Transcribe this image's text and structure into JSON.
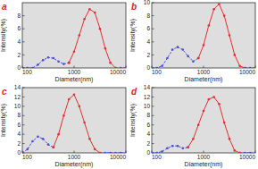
{
  "chart_data": [
    {
      "type": "line",
      "title": "a",
      "x_label": "Diameter(nm)",
      "y_label": "Intensity(%)",
      "log": "x",
      "x": [
        100,
        126,
        158,
        200,
        251,
        316,
        398,
        501,
        631,
        794,
        1000,
        1259,
        1585,
        1995,
        2512,
        3162,
        3981,
        5012,
        6310,
        7943,
        10000
      ],
      "xlim": [
        100,
        10000
      ],
      "xticks": [
        100,
        1000,
        10000
      ],
      "ylim": [
        0,
        10
      ],
      "yticks": [
        0,
        2,
        4,
        6,
        8
      ],
      "series": [
        {
          "color": "#4a4ad8",
          "line_style": "dashed",
          "marker": "circle",
          "values": [
            0,
            0,
            0,
            0.5,
            1.2,
            1.6,
            1.5,
            1.0,
            0.6,
            0.8,
            null,
            null,
            null,
            null,
            null,
            null,
            null,
            null,
            0,
            0,
            0
          ]
        },
        {
          "color": "#e03030",
          "line_style": "solid",
          "marker": "circle",
          "values": [
            null,
            null,
            null,
            null,
            null,
            null,
            null,
            null,
            null,
            0.8,
            2.5,
            5,
            7.5,
            9,
            8.5,
            6,
            3,
            0.8,
            0,
            null,
            null
          ]
        }
      ]
    },
    {
      "type": "line",
      "title": "b",
      "x_label": "Diameter(nm)",
      "y_label": "Intensity(%)",
      "log": "x",
      "x": [
        100,
        126,
        158,
        200,
        251,
        316,
        398,
        501,
        631,
        794,
        1000,
        1259,
        1585,
        1995,
        2512,
        3162,
        3981,
        5012,
        6310,
        7943,
        10000
      ],
      "xlim": [
        100,
        10000
      ],
      "xticks": [
        100,
        1000,
        10000
      ],
      "ylim": [
        0,
        10
      ],
      "yticks": [
        0,
        2,
        4,
        6,
        8,
        10
      ],
      "series": [
        {
          "color": "#4a4ad8",
          "line_style": "dashed",
          "marker": "circle",
          "values": [
            0,
            0,
            0.3,
            1.5,
            2.8,
            3.2,
            2.8,
            1.8,
            1.0,
            1.5,
            null,
            null,
            null,
            null,
            null,
            null,
            null,
            null,
            0,
            0,
            0
          ]
        },
        {
          "color": "#e03030",
          "line_style": "solid",
          "marker": "circle",
          "values": [
            null,
            null,
            null,
            null,
            null,
            null,
            null,
            null,
            null,
            1.5,
            3.5,
            6.5,
            9,
            9.8,
            8,
            5,
            2,
            0.3,
            0,
            null,
            null
          ]
        }
      ]
    },
    {
      "type": "line",
      "title": "c",
      "x_label": "Diameter(nm)",
      "y_label": "Intensity(%)",
      "log": "x",
      "x": [
        100,
        126,
        158,
        200,
        251,
        316,
        398,
        501,
        631,
        794,
        1000,
        1259,
        1585,
        1995,
        2512,
        3162,
        3981,
        5012,
        6310,
        7943,
        10000
      ],
      "xlim": [
        100,
        10000
      ],
      "xticks": [
        100,
        1000,
        10000
      ],
      "ylim": [
        0,
        14
      ],
      "yticks": [
        0,
        2,
        4,
        6,
        8,
        10,
        12,
        14
      ],
      "series": [
        {
          "color": "#4a4ad8",
          "line_style": "dashed",
          "marker": "circle",
          "values": [
            0,
            0.8,
            2.5,
            3.5,
            3,
            1.8,
            1.2,
            null,
            null,
            null,
            null,
            null,
            null,
            null,
            null,
            0,
            0,
            0,
            0,
            0,
            0
          ]
        },
        {
          "color": "#e03030",
          "line_style": "solid",
          "marker": "circle",
          "values": [
            null,
            null,
            null,
            null,
            null,
            null,
            1.2,
            4,
            8,
            11.5,
            12.5,
            10,
            6.5,
            3,
            0.8,
            0,
            null,
            null,
            null,
            null,
            null
          ]
        }
      ]
    },
    {
      "type": "line",
      "title": "d",
      "x_label": "Diameter(nm)",
      "y_label": "Intensity(%)",
      "log": "x",
      "x": [
        100,
        126,
        158,
        200,
        251,
        316,
        398,
        501,
        631,
        794,
        1000,
        1259,
        1585,
        1995,
        2512,
        3162,
        3981,
        5012,
        6310,
        7943,
        10000
      ],
      "xlim": [
        100,
        10000
      ],
      "xticks": [
        100,
        1000,
        10000
      ],
      "ylim": [
        0,
        14
      ],
      "yticks": [
        0,
        2,
        4,
        6,
        8,
        10,
        12,
        14
      ],
      "series": [
        {
          "color": "#4a4ad8",
          "line_style": "dashed",
          "marker": "circle",
          "values": [
            0,
            0,
            0.3,
            1,
            1.5,
            1.5,
            1,
            1.2,
            null,
            null,
            null,
            null,
            null,
            null,
            null,
            null,
            null,
            0,
            0,
            0,
            0
          ]
        },
        {
          "color": "#e03030",
          "line_style": "solid",
          "marker": "circle",
          "values": [
            null,
            null,
            null,
            null,
            null,
            null,
            null,
            1.2,
            3,
            6,
            9,
            11.5,
            12,
            10.5,
            6.5,
            3,
            0.5,
            0,
            null,
            null,
            null
          ]
        }
      ]
    }
  ]
}
